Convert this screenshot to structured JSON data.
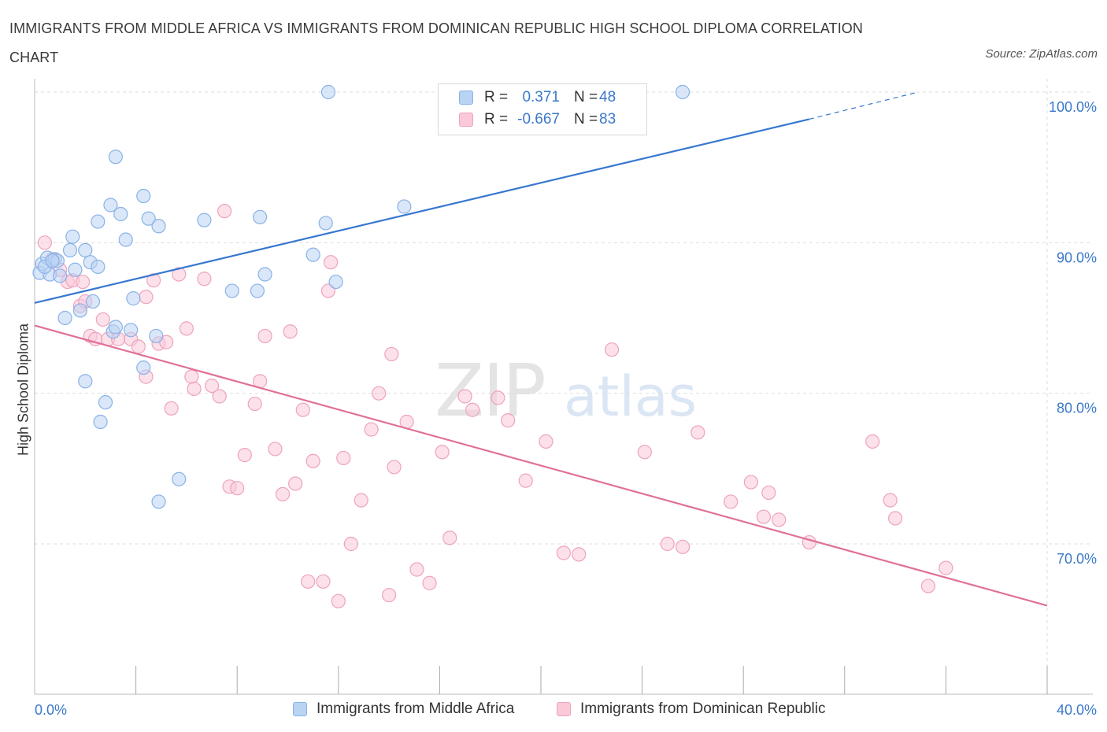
{
  "title": "IMMIGRANTS FROM MIDDLE AFRICA VS IMMIGRANTS FROM DOMINICAN REPUBLIC HIGH SCHOOL DIPLOMA CORRELATION CHART",
  "source": "Source: ZipAtlas.com",
  "watermark": {
    "zip": "ZIP",
    "atlas": "atlas"
  },
  "legend": {
    "series1": {
      "r_label": "R =",
      "r_value": "0.371",
      "n_label": "N =",
      "n_value": "48"
    },
    "series2": {
      "r_label": "R =",
      "r_value": "-0.667",
      "n_label": "N =",
      "n_value": "83"
    }
  },
  "colors": {
    "blue_fill": "#b9d3f4",
    "blue_stroke": "#8ab2e6",
    "blue_line": "#3777d0",
    "pink_fill": "#f9c9d8",
    "pink_stroke": "#eea3bc",
    "pink_line": "#e0709a",
    "axis_text": "#3a78c9",
    "grid": "#dddddd"
  },
  "chart_data": {
    "type": "scatter",
    "title": "IMMIGRANTS FROM MIDDLE AFRICA VS IMMIGRANTS FROM DOMINICAN REPUBLIC HIGH SCHOOL DIPLOMA CORRELATION CHART",
    "xlabel": "",
    "ylabel": "High School Diploma",
    "xlim": [
      0,
      40
    ],
    "ylim": [
      61,
      101.5
    ],
    "x_tick_labels": [
      "0.0%",
      "40.0%"
    ],
    "y_ticks": [
      70,
      80,
      90,
      100
    ],
    "y_tick_labels": [
      "70.0%",
      "80.0%",
      "90.0%",
      "100.0%"
    ],
    "grid": true,
    "legend_position": "top-center",
    "series": [
      {
        "name": "Immigrants from Middle Africa",
        "color": "#b9d3f4",
        "trend": {
          "x0": 0,
          "y0": 86.0,
          "x1": 30.6,
          "y1": 98.2,
          "x_dash_end": 34.9,
          "y_dash_end": 100.0
        },
        "points": [
          [
            0.2,
            88.0
          ],
          [
            0.3,
            88.6
          ],
          [
            0.5,
            89.0
          ],
          [
            0.6,
            87.9
          ],
          [
            0.8,
            88.9
          ],
          [
            0.9,
            88.8
          ],
          [
            1.0,
            87.8
          ],
          [
            1.2,
            85.0
          ],
          [
            1.4,
            89.5
          ],
          [
            1.5,
            90.4
          ],
          [
            1.6,
            88.2
          ],
          [
            2.0,
            89.5
          ],
          [
            2.2,
            88.7
          ],
          [
            2.3,
            86.1
          ],
          [
            2.5,
            91.4
          ],
          [
            2.5,
            88.4
          ],
          [
            1.8,
            85.5
          ],
          [
            2.0,
            80.8
          ],
          [
            2.8,
            79.4
          ],
          [
            3.1,
            84.1
          ],
          [
            3.2,
            84.4
          ],
          [
            3.0,
            92.5
          ],
          [
            3.2,
            95.7
          ],
          [
            3.4,
            91.9
          ],
          [
            3.6,
            90.2
          ],
          [
            3.8,
            84.2
          ],
          [
            3.9,
            86.3
          ],
          [
            4.3,
            93.1
          ],
          [
            4.3,
            81.7
          ],
          [
            4.5,
            91.6
          ],
          [
            4.8,
            83.8
          ],
          [
            4.9,
            91.1
          ],
          [
            4.9,
            72.8
          ],
          [
            5.7,
            74.3
          ],
          [
            2.6,
            78.1
          ],
          [
            6.7,
            91.5
          ],
          [
            7.8,
            86.8
          ],
          [
            8.8,
            86.8
          ],
          [
            8.9,
            91.7
          ],
          [
            9.1,
            87.9
          ],
          [
            11.0,
            89.2
          ],
          [
            11.5,
            91.3
          ],
          [
            11.9,
            87.4
          ],
          [
            11.6,
            100.0
          ],
          [
            14.6,
            92.4
          ],
          [
            25.6,
            100.0
          ],
          [
            0.4,
            88.4
          ],
          [
            0.7,
            88.8
          ]
        ]
      },
      {
        "name": "Immigrants from Dominican Republic",
        "color": "#f9c9d8",
        "trend": {
          "x0": 0,
          "y0": 84.5,
          "x1": 40,
          "y1": 65.9
        },
        "points": [
          [
            0.4,
            90.0
          ],
          [
            0.7,
            88.9
          ],
          [
            1.0,
            88.2
          ],
          [
            1.3,
            87.4
          ],
          [
            1.5,
            87.5
          ],
          [
            1.8,
            85.8
          ],
          [
            1.9,
            87.4
          ],
          [
            2.0,
            86.1
          ],
          [
            2.2,
            83.8
          ],
          [
            2.4,
            83.6
          ],
          [
            2.7,
            84.9
          ],
          [
            2.9,
            83.6
          ],
          [
            3.3,
            83.6
          ],
          [
            3.8,
            83.6
          ],
          [
            4.1,
            83.1
          ],
          [
            4.4,
            86.4
          ],
          [
            4.4,
            81.1
          ],
          [
            4.7,
            87.5
          ],
          [
            4.9,
            83.3
          ],
          [
            5.2,
            83.4
          ],
          [
            5.4,
            79.0
          ],
          [
            5.7,
            87.9
          ],
          [
            6.0,
            84.3
          ],
          [
            6.2,
            81.1
          ],
          [
            6.3,
            80.3
          ],
          [
            6.7,
            87.6
          ],
          [
            7.0,
            80.5
          ],
          [
            7.3,
            79.8
          ],
          [
            7.5,
            92.1
          ],
          [
            7.7,
            73.8
          ],
          [
            8.0,
            73.7
          ],
          [
            8.3,
            75.9
          ],
          [
            8.7,
            79.3
          ],
          [
            8.9,
            80.8
          ],
          [
            9.1,
            83.8
          ],
          [
            9.5,
            76.3
          ],
          [
            9.8,
            73.3
          ],
          [
            10.1,
            84.1
          ],
          [
            10.3,
            74.0
          ],
          [
            10.6,
            78.9
          ],
          [
            10.8,
            67.5
          ],
          [
            11.0,
            75.5
          ],
          [
            11.4,
            67.5
          ],
          [
            11.6,
            86.8
          ],
          [
            11.7,
            88.7
          ],
          [
            12.0,
            66.2
          ],
          [
            12.2,
            75.7
          ],
          [
            12.5,
            70.0
          ],
          [
            12.9,
            72.9
          ],
          [
            13.3,
            77.6
          ],
          [
            13.6,
            80.0
          ],
          [
            14.0,
            66.6
          ],
          [
            14.2,
            75.1
          ],
          [
            14.1,
            82.6
          ],
          [
            14.7,
            78.1
          ],
          [
            15.1,
            68.3
          ],
          [
            15.6,
            67.4
          ],
          [
            16.1,
            76.1
          ],
          [
            16.4,
            70.4
          ],
          [
            17.0,
            79.8
          ],
          [
            17.3,
            78.9
          ],
          [
            18.3,
            79.7
          ],
          [
            18.7,
            78.2
          ],
          [
            19.4,
            74.2
          ],
          [
            20.2,
            76.8
          ],
          [
            20.9,
            69.4
          ],
          [
            21.5,
            69.3
          ],
          [
            22.8,
            82.9
          ],
          [
            24.1,
            76.1
          ],
          [
            25.0,
            70.0
          ],
          [
            25.6,
            69.8
          ],
          [
            26.2,
            77.4
          ],
          [
            27.5,
            72.8
          ],
          [
            28.3,
            74.1
          ],
          [
            28.8,
            71.8
          ],
          [
            29.0,
            73.4
          ],
          [
            29.4,
            71.6
          ],
          [
            30.6,
            70.1
          ],
          [
            33.1,
            76.8
          ],
          [
            33.8,
            72.9
          ],
          [
            34.0,
            71.7
          ],
          [
            35.3,
            67.2
          ],
          [
            36.0,
            68.4
          ]
        ]
      }
    ]
  },
  "bottom_legend": {
    "series1_label": "Immigrants from Middle Africa",
    "series2_label": "Immigrants from Dominican Republic"
  }
}
